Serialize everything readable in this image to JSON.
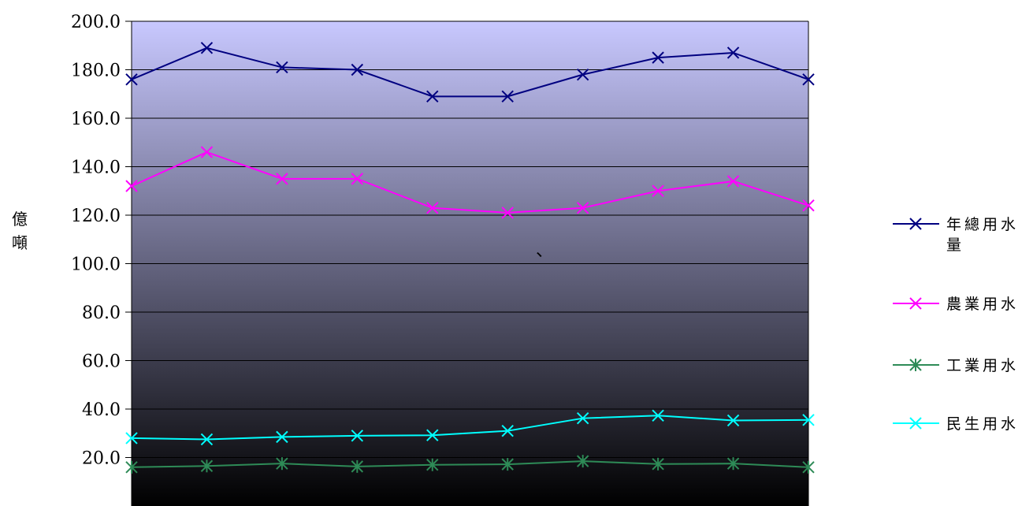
{
  "chart_data": {
    "type": "line",
    "title": "",
    "xlabel": "",
    "ylabel": "億噸",
    "ylim": [
      0,
      200
    ],
    "y_ticks": [
      "20.0",
      "40.0",
      "60.0",
      "80.0",
      "100.0",
      "120.0",
      "140.0",
      "160.0",
      "180.0",
      "200.0"
    ],
    "grid": true,
    "legend_position": "right",
    "background": {
      "top": "#c8c8ff",
      "bottom": "#000000"
    },
    "annotation": "、",
    "series": [
      {
        "name": "年總用水量",
        "color": "#000080",
        "marker": "x",
        "values": [
          176,
          189,
          181,
          180,
          169,
          169,
          178,
          185,
          187,
          176
        ]
      },
      {
        "name": "農業用水",
        "color": "#ff00ff",
        "marker": "x",
        "values": [
          132,
          146,
          135,
          135,
          123,
          121,
          123,
          130,
          134,
          124
        ]
      },
      {
        "name": "工業用水",
        "color": "#2e8b57",
        "marker": "asterisk",
        "values": [
          16,
          16.5,
          17.5,
          16.3,
          17,
          17.2,
          18.5,
          17.3,
          17.5,
          16
        ]
      },
      {
        "name": "民生用水",
        "color": "#00ffff",
        "marker": "x",
        "values": [
          28,
          27.5,
          28.5,
          29,
          29.2,
          31,
          36.2,
          37.3,
          35.3,
          35.5
        ]
      }
    ]
  }
}
